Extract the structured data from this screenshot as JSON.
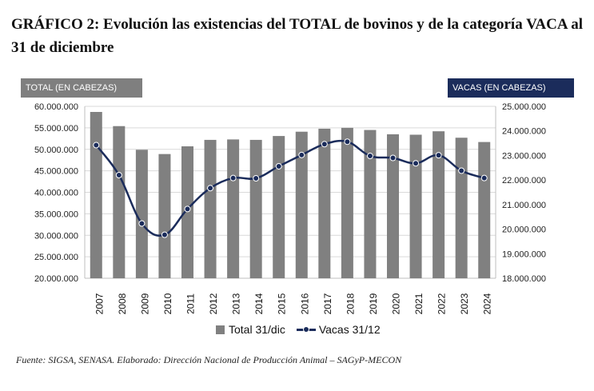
{
  "title": "GRÁFICO 2: Evolución las existencias del TOTAL de bovinos y de la categoría VACA al 31 de diciembre",
  "left_axis_title": "TOTAL (EN CABEZAS)",
  "right_axis_title": "VACAS (EN CABEZAS)",
  "source": "Fuente: SIGSA, SENASA. Elaborado: Dirección Nacional de Producción Animal – SAGyP-MECON",
  "colors": {
    "bar": "#808080",
    "line": "#1b2c5b",
    "grid": "#d9d9d9"
  },
  "chart_data": {
    "type": "bar",
    "categories": [
      "2007",
      "2008",
      "2009",
      "2010",
      "2011",
      "2012",
      "2013",
      "2014",
      "2015",
      "2016",
      "2017",
      "2018",
      "2019",
      "2020",
      "2021",
      "2022",
      "2023",
      "2024"
    ],
    "series": [
      {
        "name": "Total 31/dic",
        "type": "bar",
        "axis": "left",
        "values": [
          58700000,
          55400000,
          49900000,
          48900000,
          50700000,
          52200000,
          52300000,
          52200000,
          53100000,
          54100000,
          54800000,
          55000000,
          54500000,
          53500000,
          53400000,
          54200000,
          52700000,
          51700000
        ]
      },
      {
        "name": "Vacas 31/12",
        "type": "line",
        "axis": "right",
        "values": [
          23420000,
          22200000,
          20230000,
          19770000,
          20820000,
          21670000,
          22080000,
          22070000,
          22560000,
          23020000,
          23460000,
          23560000,
          22980000,
          22900000,
          22680000,
          23010000,
          22380000,
          22080000
        ]
      }
    ],
    "y_left": {
      "ylim": [
        20000000,
        60000000
      ],
      "ticks": [
        "20.000.000",
        "25.000.000",
        "30.000.000",
        "35.000.000",
        "40.000.000",
        "45.000.000",
        "50.000.000",
        "55.000.000",
        "60.000.000"
      ]
    },
    "y_right": {
      "ylim": [
        18000000,
        25000000
      ],
      "ticks": [
        "18.000.000",
        "19.000.000",
        "20.000.000",
        "21.000.000",
        "22.000.000",
        "23.000.000",
        "24.000.000",
        "25.000.000"
      ]
    },
    "grid": true,
    "legend_position": "bottom"
  }
}
